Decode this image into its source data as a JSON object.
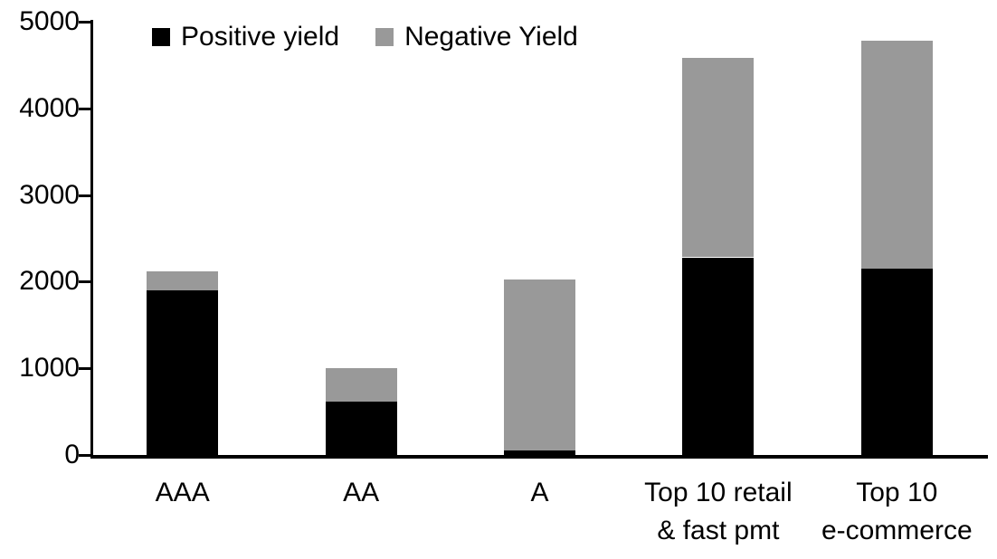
{
  "chart_data": {
    "type": "bar",
    "stacked": true,
    "title": "",
    "xlabel": "",
    "ylabel": "",
    "grid": false,
    "legend_position": "top-left-inside",
    "ylim": [
      0,
      5000
    ],
    "yticks": [
      0,
      1000,
      2000,
      3000,
      4000,
      5000
    ],
    "categories": [
      "AAA",
      "AA",
      "A",
      "Top 10 retail & fast pmt",
      "Top 10 e-commerce"
    ],
    "category_lines": [
      [
        "AAA"
      ],
      [
        "AA"
      ],
      [
        "A"
      ],
      [
        "Top 10 retail",
        "& fast pmt"
      ],
      [
        "Top 10",
        "e-commerce"
      ]
    ],
    "series": [
      {
        "name": "Positive yield",
        "color": "#000000",
        "values": [
          1900,
          620,
          50,
          2280,
          2150
        ]
      },
      {
        "name": "Negative Yield",
        "color": "#999999",
        "values": [
          220,
          380,
          1980,
          2300,
          2630
        ]
      }
    ],
    "axis_color": "#000000"
  }
}
